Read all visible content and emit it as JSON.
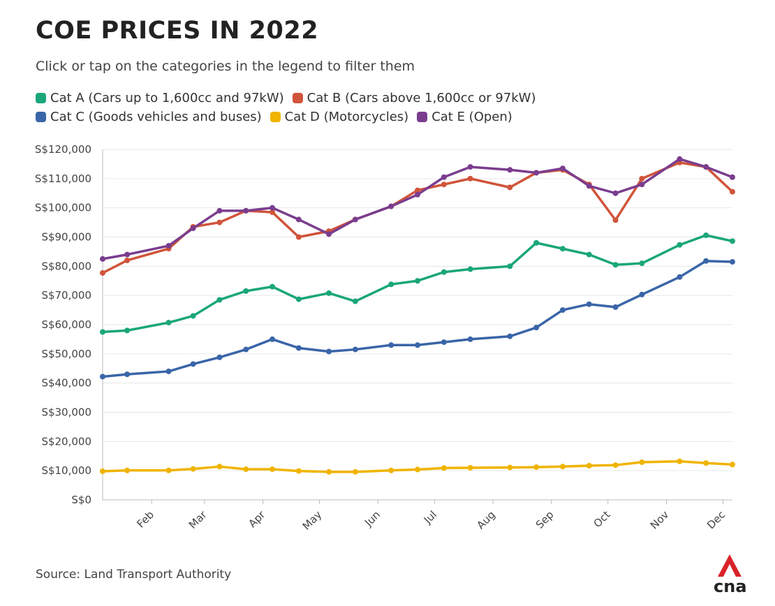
{
  "title": "COE PRICES IN 2022",
  "subtitle": "Click or tap on the categories in the legend to filter them",
  "source": "Source: Land Transport Authority",
  "logo": "cna",
  "chart_data": {
    "type": "line",
    "x": [
      6,
      19,
      41,
      54,
      68,
      82,
      96,
      110,
      126,
      140,
      159,
      173,
      187,
      201,
      222,
      236,
      250,
      264,
      278,
      292,
      312,
      326,
      340
    ],
    "xlim": [
      6,
      340
    ],
    "xticks": [
      {
        "value": 32,
        "label": "Feb"
      },
      {
        "value": 60,
        "label": "Mar"
      },
      {
        "value": 91,
        "label": "Apr"
      },
      {
        "value": 121,
        "label": "May"
      },
      {
        "value": 152,
        "label": "Jun"
      },
      {
        "value": 182,
        "label": "Jul"
      },
      {
        "value": 213,
        "label": "Aug"
      },
      {
        "value": 244,
        "label": "Sep"
      },
      {
        "value": 274,
        "label": "Oct"
      },
      {
        "value": 305,
        "label": "Nov"
      },
      {
        "value": 335,
        "label": "Dec"
      }
    ],
    "ylim": [
      0,
      120000
    ],
    "yticks": [
      {
        "value": 0,
        "label": "S$0"
      },
      {
        "value": 10000,
        "label": "S$10,000"
      },
      {
        "value": 20000,
        "label": "S$20,000"
      },
      {
        "value": 30000,
        "label": "S$30,000"
      },
      {
        "value": 40000,
        "label": "S$40,000"
      },
      {
        "value": 50000,
        "label": "S$50,000"
      },
      {
        "value": 60000,
        "label": "S$60,000"
      },
      {
        "value": 70000,
        "label": "S$70,000"
      },
      {
        "value": 80000,
        "label": "S$80,000"
      },
      {
        "value": 90000,
        "label": "S$90,000"
      },
      {
        "value": 100000,
        "label": "S$100,000"
      },
      {
        "value": 110000,
        "label": "S$110,000"
      },
      {
        "value": 120000,
        "label": "S$120,000"
      }
    ],
    "grid": true,
    "series": [
      {
        "name": "Cat A (Cars up to 1,600cc and 97kW)",
        "color": "#1aa67a",
        "values": [
          57500,
          58000,
          60700,
          63000,
          68500,
          71500,
          73000,
          68700,
          70800,
          68000,
          73800,
          75000,
          78000,
          79000,
          80000,
          88000,
          86000,
          84000,
          80500,
          81000,
          87300,
          90600,
          88600
        ]
      },
      {
        "name": "Cat B (Cars above 1,600cc or 97kW)",
        "color": "#d0543a",
        "values": [
          77700,
          82000,
          86000,
          93500,
          95000,
          99000,
          98500,
          90000,
          92000,
          96000,
          100500,
          106000,
          108000,
          110000,
          107000,
          112000,
          113000,
          108000,
          95800,
          110000,
          115500,
          114000,
          105500
        ]
      },
      {
        "name": "Cat C (Goods vehicles and buses)",
        "color": "#3a65a8",
        "values": [
          42200,
          43000,
          44000,
          46500,
          48800,
          51500,
          55000,
          52000,
          50800,
          51500,
          53000,
          53000,
          54000,
          55000,
          56000,
          59000,
          65000,
          67000,
          66000,
          70300,
          76300,
          81800,
          81500
        ]
      },
      {
        "name": "Cat D (Motorcycles)",
        "color": "#f0b400",
        "values": [
          9800,
          10100,
          10100,
          10600,
          11400,
          10500,
          10500,
          9900,
          9600,
          9600,
          10100,
          10400,
          10900,
          11000,
          11100,
          11200,
          11400,
          11700,
          11900,
          12900,
          13200,
          12600,
          12100
        ]
      },
      {
        "name": "Cat E (Open)",
        "color": "#7a3d8e",
        "values": [
          82500,
          84000,
          87000,
          93000,
          99000,
          99000,
          100000,
          96000,
          91000,
          96000,
          100500,
          104500,
          110500,
          114000,
          113000,
          112000,
          113500,
          107500,
          105000,
          108000,
          116700,
          114000,
          110500
        ]
      }
    ]
  }
}
